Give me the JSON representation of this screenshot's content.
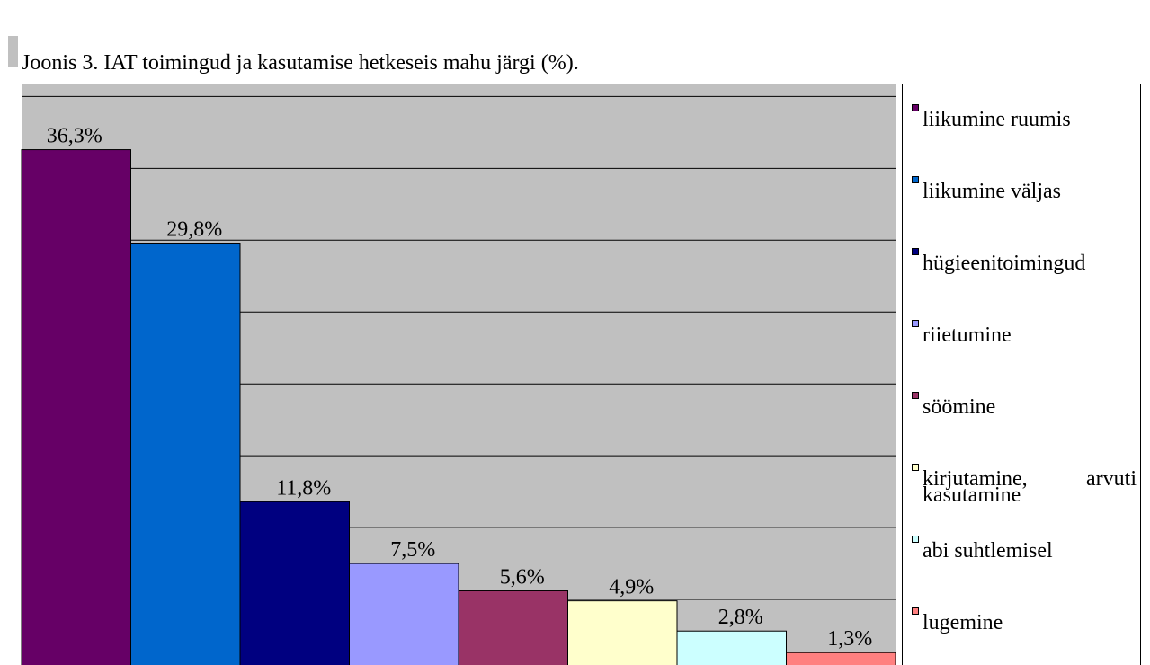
{
  "chart_data": {
    "type": "bar",
    "title": "Joonis 3. IAT toimingud ja kasutamise hetkeseis mahu järgi (%).",
    "categories": [
      "liikumine ruumis",
      "liikumine väljas",
      "hügieenitoimingud",
      "riietumine",
      "söömine",
      "kirjutamine, arvuti kasutamine",
      "abi suhtlemisel",
      "lugemine"
    ],
    "values": [
      36.3,
      29.8,
      11.8,
      7.5,
      5.6,
      4.9,
      2.8,
      1.3
    ],
    "value_labels": [
      "36,3%",
      "29,8%",
      "11,8%",
      "7,5%",
      "5,6%",
      "4,9%",
      "2,8%",
      "1,3%"
    ],
    "colors": [
      "#660066",
      "#0066cc",
      "#000080",
      "#9999ff",
      "#993366",
      "#ffffcc",
      "#ccffff",
      "#ff8080"
    ],
    "ylim": [
      0,
      40.9
    ],
    "yticks": [
      5,
      10,
      15,
      20,
      25,
      30,
      35,
      40
    ],
    "grid": true,
    "legend": "right"
  }
}
